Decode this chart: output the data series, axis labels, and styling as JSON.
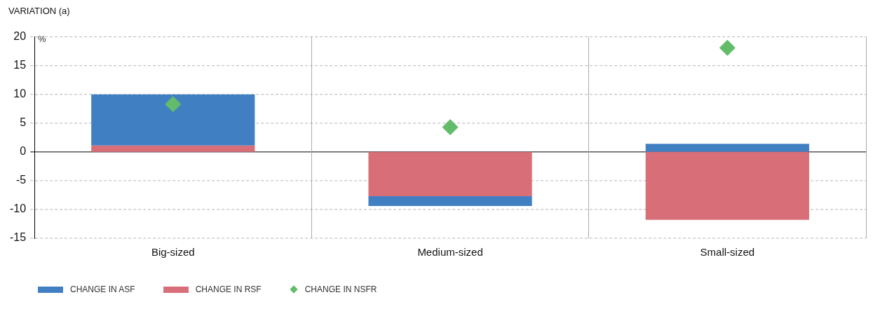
{
  "chart_data": {
    "type": "bar",
    "title": "VARIATION (a)",
    "ylabel": "%",
    "categories": [
      "Big-sized",
      "Medium-sized",
      "Small-sized"
    ],
    "stacked": true,
    "series": [
      {
        "name": "CHANGE IN RSF",
        "color": "#d76e78",
        "values": [
          1.1,
          -7.7,
          -11.8
        ]
      },
      {
        "name": "CHANGE IN ASF",
        "color": "#4080c2",
        "values": [
          8.9,
          -1.7,
          1.4
        ]
      },
      {
        "name": "CHANGE IN NSFR",
        "type": "scatter",
        "color": "#62bc6a",
        "x": [
          "Big-sized",
          "Medium-sized",
          "Small-sized"
        ],
        "values": [
          8.3,
          4.3,
          18.1
        ]
      }
    ],
    "ylim": [
      -15,
      20
    ],
    "yticks": [
      -15,
      -10,
      -5,
      0,
      5,
      10,
      15,
      20
    ],
    "grid": true,
    "legend": "bottom",
    "marker": "diamond"
  }
}
